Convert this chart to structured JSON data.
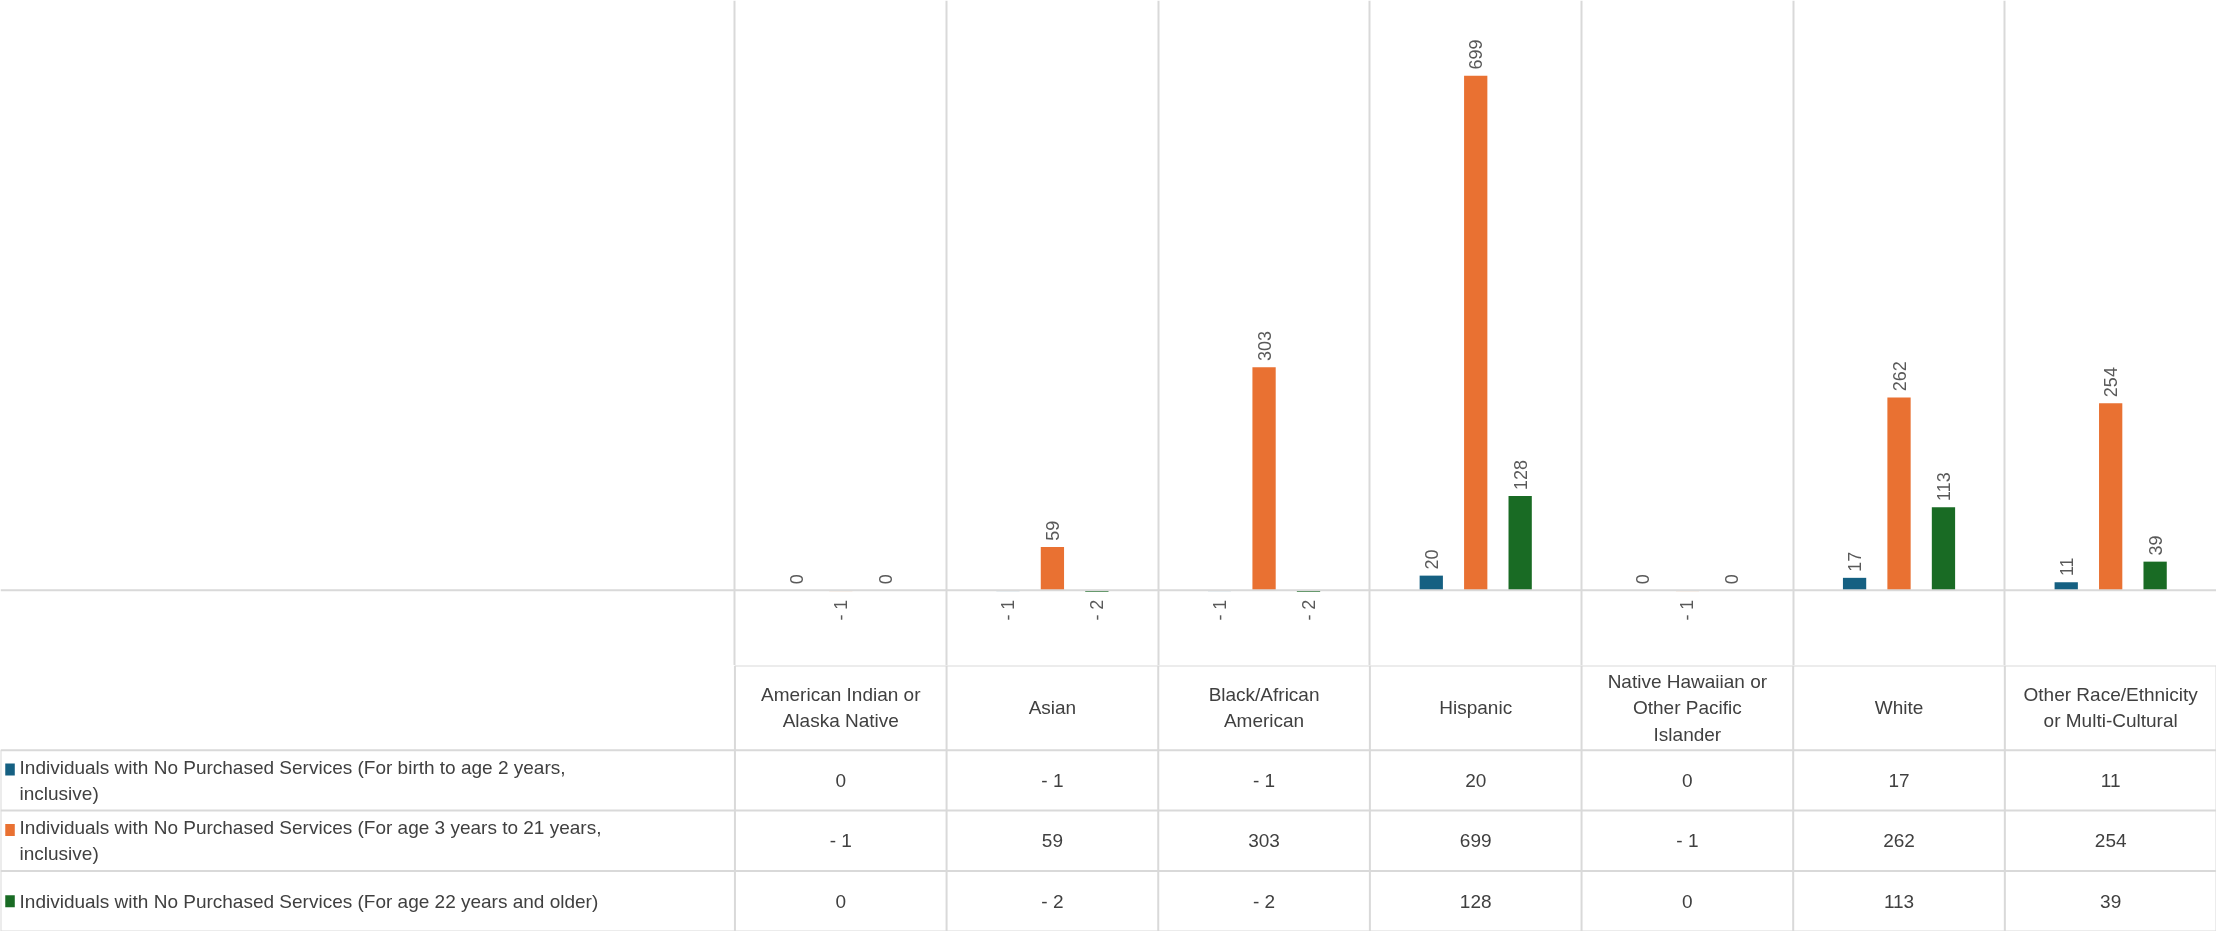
{
  "chart_data": {
    "type": "bar",
    "categories": [
      "American Indian or Alaska Native",
      "Asian",
      "Black/African American",
      "Hispanic",
      "Native Hawaiian or Other Pacific Islander",
      "White",
      "Other Race/Ethnicity or Multi-Cultural"
    ],
    "series": [
      {
        "name": "Individuals with No Purchased Services (For birth to age 2 years, inclusive)",
        "color": "#156082",
        "values": [
          0,
          -1,
          -1,
          20,
          0,
          17,
          11
        ],
        "value_labels": [
          "0",
          "- 1",
          "- 1",
          "20",
          "0",
          "17",
          "11"
        ]
      },
      {
        "name": "Individuals with No Purchased Services (For age 3 years to 21 years, inclusive)",
        "color": "#e97132",
        "values": [
          -1,
          59,
          303,
          699,
          -1,
          262,
          254
        ],
        "value_labels": [
          "- 1",
          "59",
          "303",
          "699",
          "- 1",
          "262",
          "254"
        ]
      },
      {
        "name": "Individuals with No Purchased Services (For age 22 years and older)",
        "color": "#196b24",
        "values": [
          0,
          -2,
          -2,
          128,
          0,
          113,
          39
        ],
        "value_labels": [
          "0",
          "- 2",
          "- 2",
          "128",
          "0",
          "113",
          "39"
        ]
      }
    ],
    "grid": "x",
    "legend": "bottom"
  }
}
